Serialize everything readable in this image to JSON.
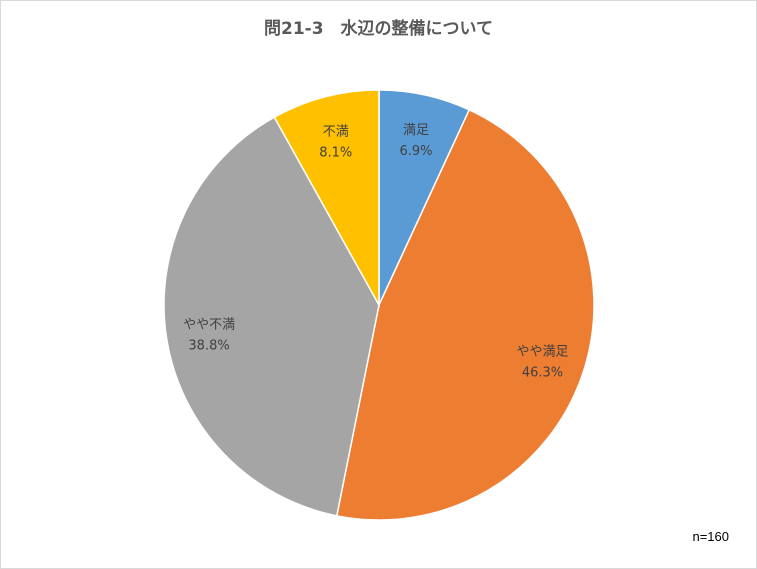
{
  "chart_data": {
    "type": "pie",
    "title": "問21-3　水辺の整備について",
    "categories": [
      "満足",
      "やや満足",
      "やや不満",
      "不満"
    ],
    "values": [
      6.9,
      46.3,
      38.8,
      8.1
    ],
    "value_labels": [
      "6.9%",
      "46.3%",
      "38.8%",
      "8.1%"
    ],
    "colors": [
      "#5B9BD5",
      "#ED7D31",
      "#A5A5A5",
      "#FFC000"
    ],
    "start_angle": "12 o'clock",
    "direction": "clockwise",
    "legend": "none",
    "note": "n=160"
  }
}
